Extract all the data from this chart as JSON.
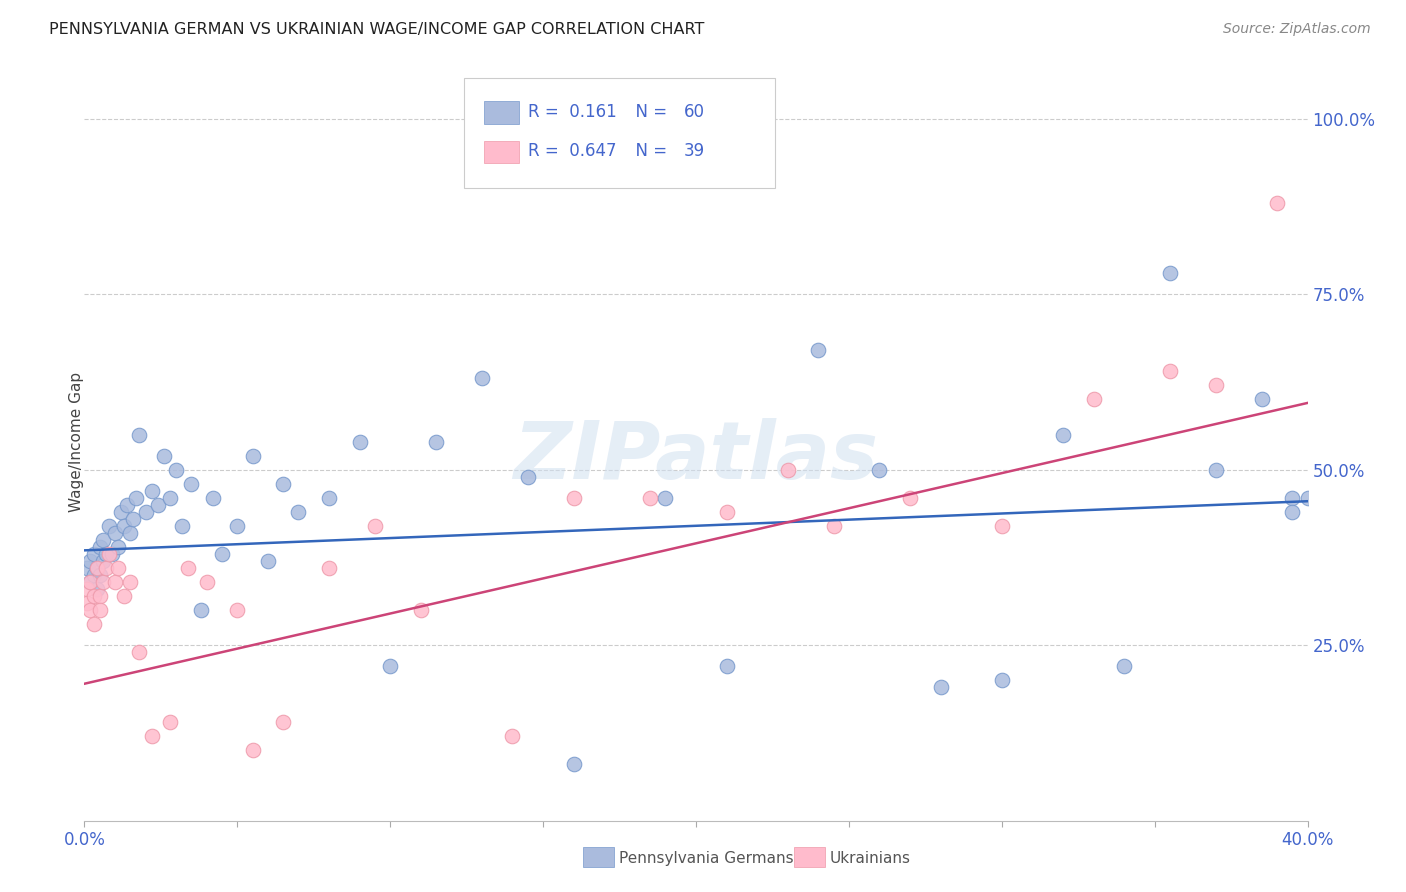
{
  "title": "PENNSYLVANIA GERMAN VS UKRAINIAN WAGE/INCOME GAP CORRELATION CHART",
  "source": "Source: ZipAtlas.com",
  "ylabel": "Wage/Income Gap",
  "ytick_labels": [
    "25.0%",
    "50.0%",
    "75.0%",
    "100.0%"
  ],
  "ytick_positions": [
    0.25,
    0.5,
    0.75,
    1.0
  ],
  "blue_scatter_x": [
    0.001,
    0.002,
    0.002,
    0.003,
    0.003,
    0.004,
    0.004,
    0.005,
    0.005,
    0.006,
    0.006,
    0.007,
    0.008,
    0.009,
    0.01,
    0.011,
    0.012,
    0.013,
    0.014,
    0.015,
    0.016,
    0.017,
    0.018,
    0.02,
    0.022,
    0.024,
    0.026,
    0.028,
    0.03,
    0.032,
    0.035,
    0.038,
    0.042,
    0.045,
    0.05,
    0.055,
    0.06,
    0.065,
    0.07,
    0.08,
    0.09,
    0.1,
    0.115,
    0.13,
    0.145,
    0.16,
    0.19,
    0.21,
    0.24,
    0.26,
    0.28,
    0.3,
    0.32,
    0.34,
    0.355,
    0.37,
    0.385,
    0.395,
    0.395,
    0.4
  ],
  "blue_scatter_y": [
    0.36,
    0.34,
    0.37,
    0.35,
    0.38,
    0.33,
    0.36,
    0.35,
    0.39,
    0.37,
    0.4,
    0.38,
    0.42,
    0.38,
    0.41,
    0.39,
    0.44,
    0.42,
    0.45,
    0.41,
    0.43,
    0.46,
    0.55,
    0.44,
    0.47,
    0.45,
    0.52,
    0.46,
    0.5,
    0.42,
    0.48,
    0.3,
    0.46,
    0.38,
    0.42,
    0.52,
    0.37,
    0.48,
    0.44,
    0.46,
    0.54,
    0.22,
    0.54,
    0.63,
    0.49,
    0.08,
    0.46,
    0.22,
    0.67,
    0.5,
    0.19,
    0.2,
    0.55,
    0.22,
    0.78,
    0.5,
    0.6,
    0.46,
    0.44,
    0.46
  ],
  "pink_scatter_x": [
    0.001,
    0.001,
    0.002,
    0.002,
    0.003,
    0.003,
    0.004,
    0.005,
    0.005,
    0.006,
    0.007,
    0.008,
    0.01,
    0.011,
    0.013,
    0.015,
    0.018,
    0.022,
    0.028,
    0.034,
    0.04,
    0.05,
    0.055,
    0.065,
    0.08,
    0.095,
    0.11,
    0.14,
    0.16,
    0.185,
    0.21,
    0.23,
    0.245,
    0.27,
    0.3,
    0.33,
    0.355,
    0.37,
    0.39
  ],
  "pink_scatter_y": [
    0.33,
    0.31,
    0.34,
    0.3,
    0.32,
    0.28,
    0.36,
    0.32,
    0.3,
    0.34,
    0.36,
    0.38,
    0.34,
    0.36,
    0.32,
    0.34,
    0.24,
    0.12,
    0.14,
    0.36,
    0.34,
    0.3,
    0.1,
    0.14,
    0.36,
    0.42,
    0.3,
    0.12,
    0.46,
    0.46,
    0.44,
    0.5,
    0.42,
    0.46,
    0.42,
    0.6,
    0.64,
    0.62,
    0.88
  ],
  "blue_line_x": [
    0.0,
    0.4
  ],
  "blue_line_y": [
    0.385,
    0.455
  ],
  "pink_line_x": [
    0.0,
    0.4
  ],
  "pink_line_y": [
    0.195,
    0.595
  ],
  "blue_color": "#aabbdd",
  "blue_edge_color": "#7799cc",
  "pink_color": "#ffbbcc",
  "pink_edge_color": "#ee99aa",
  "blue_line_color": "#3366bb",
  "pink_line_color": "#cc4477",
  "watermark": "ZIPatlas",
  "xlim": [
    0.0,
    0.4
  ],
  "ylim": [
    0.0,
    1.08
  ],
  "background_color": "#ffffff",
  "grid_color": "#cccccc",
  "xtick_count": 9,
  "legend_R1": "0.161",
  "legend_N1": "60",
  "legend_R2": "0.647",
  "legend_N2": "39",
  "legend_color": "#4466cc",
  "bottom_label1": "Pennsylvania Germans",
  "bottom_label2": "Ukrainians"
}
